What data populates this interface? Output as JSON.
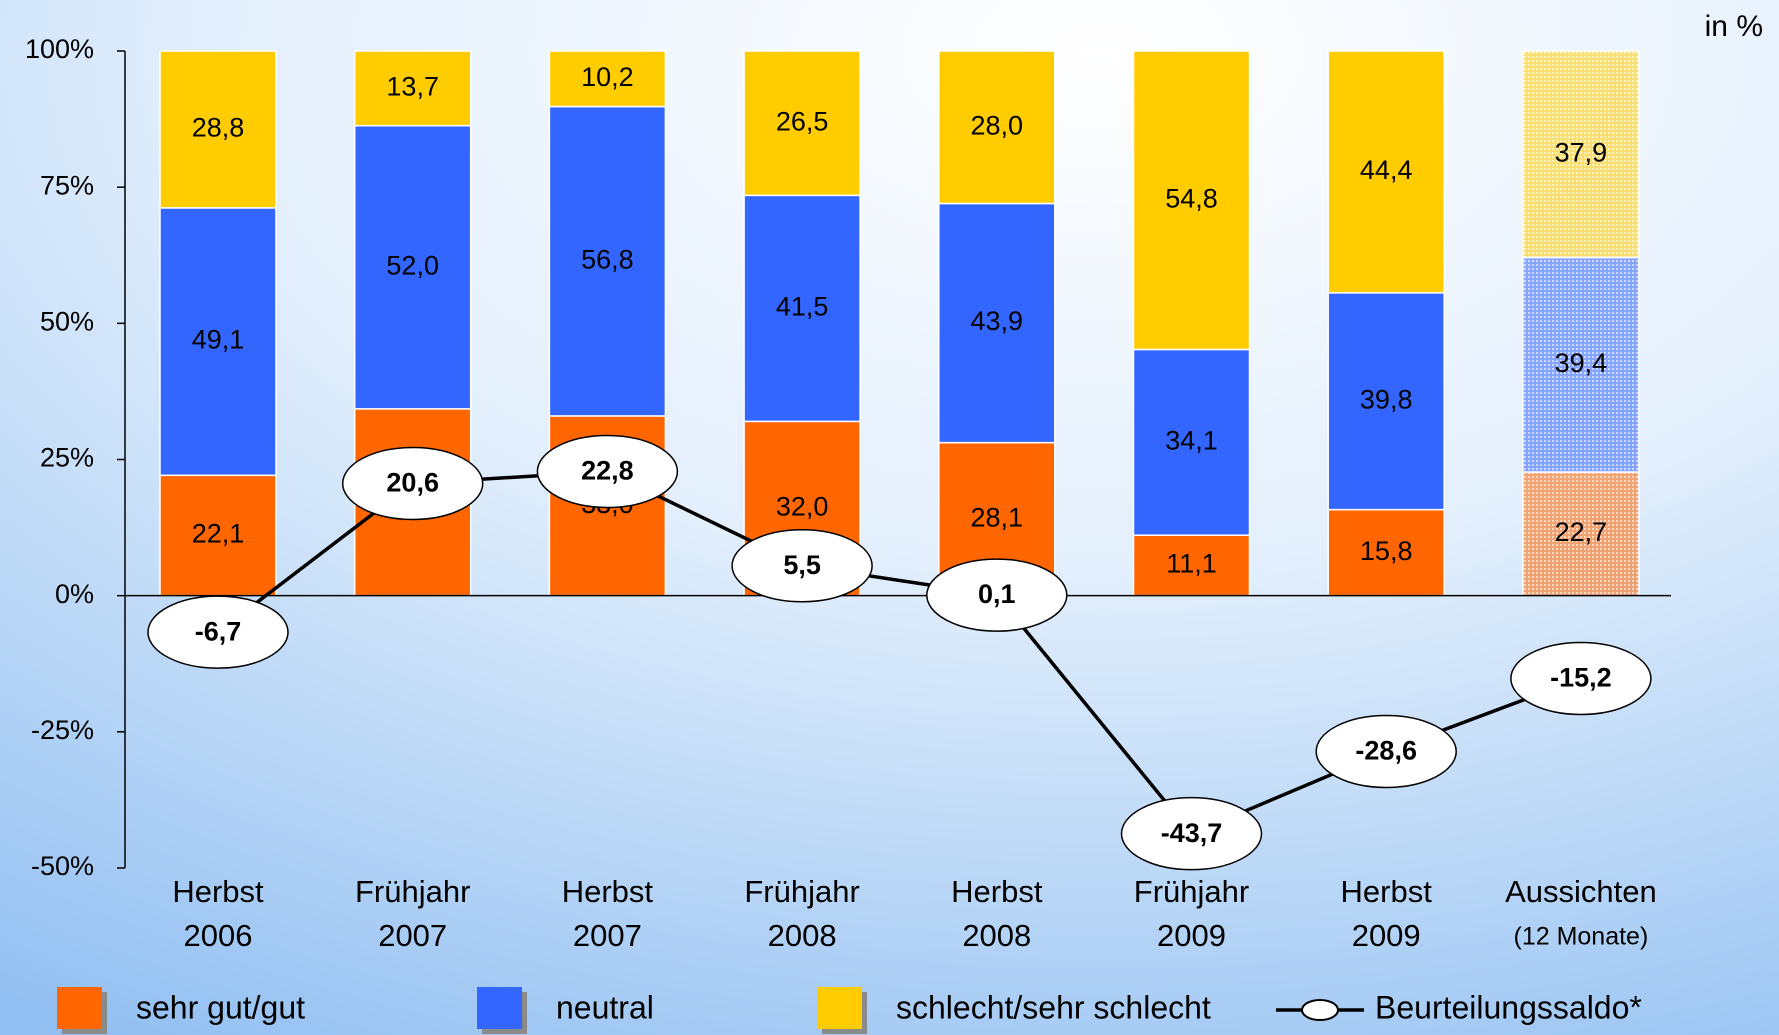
{
  "chart_data": {
    "type": "stacked_bar_line",
    "unit": "in %",
    "categories": [
      [
        "Herbst",
        "2006"
      ],
      [
        "Frühjahr",
        "2007"
      ],
      [
        "Herbst",
        "2007"
      ],
      [
        "Frühjahr",
        "2008"
      ],
      [
        "Herbst",
        "2008"
      ],
      [
        "Frühjahr",
        "2009"
      ],
      [
        "Herbst",
        "2009"
      ],
      [
        "Aussichten",
        "(12 Monate)"
      ]
    ],
    "hatched_categories": [
      7
    ],
    "ylim": [
      -50,
      100
    ],
    "yticks": [
      {
        "value": -50,
        "label": "-50%"
      },
      {
        "value": -25,
        "label": "-25%"
      },
      {
        "value": 0,
        "label": "0%"
      },
      {
        "value": 25,
        "label": "25%"
      },
      {
        "value": 50,
        "label": "50%"
      },
      {
        "value": 75,
        "label": "75%"
      },
      {
        "value": 100,
        "label": "100%"
      }
    ],
    "series": [
      {
        "name": "sehr gut/gut",
        "color": "#ff6600",
        "values": [
          22.1,
          34.3,
          33.0,
          32.0,
          28.1,
          11.1,
          15.8,
          22.7
        ],
        "value_labels": [
          "22,1",
          "34,3",
          "33,0",
          "32,0",
          "28,1",
          "11,1",
          "15,8",
          "22,7"
        ]
      },
      {
        "name": "neutral",
        "color": "#3366ff",
        "values": [
          49.1,
          52.0,
          56.8,
          41.5,
          43.9,
          34.1,
          39.8,
          39.4
        ],
        "value_labels": [
          "49,1",
          "52,0",
          "56,8",
          "41,5",
          "43,9",
          "34,1",
          "39,8",
          "39,4"
        ]
      },
      {
        "name": "schlecht/sehr schlecht",
        "color": "#ffcc00",
        "values": [
          28.8,
          13.7,
          10.2,
          26.5,
          28.0,
          54.8,
          44.4,
          37.9
        ],
        "value_labels": [
          "28,8",
          "13,7",
          "10,2",
          "26,5",
          "28,0",
          "54,8",
          "44,4",
          "37,9"
        ]
      },
      {
        "name": "Beurteilungssaldo*",
        "type": "line",
        "color": "#000000",
        "values": [
          -6.7,
          20.6,
          22.8,
          5.5,
          0.1,
          -43.7,
          -28.6,
          -15.2
        ],
        "value_labels": [
          "-6,7",
          "20,6",
          "22,8",
          "5,5",
          "0,1",
          "-43,7",
          "-28,6",
          "-15,2"
        ]
      }
    ]
  }
}
